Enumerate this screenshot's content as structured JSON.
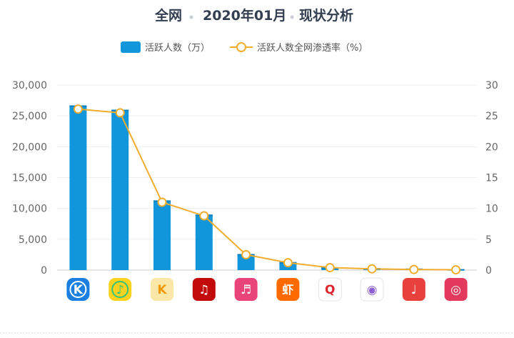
{
  "header": {
    "part1": "全网",
    "part2": "2020年01月",
    "part3": "现状分析"
  },
  "chart_data": {
    "type": "bar",
    "title": "",
    "categories": [
      "酷狗音乐",
      "QQ音乐",
      "酷我音乐",
      "网易云音乐",
      "咪咕音乐",
      "虾米音乐",
      "全民K歌",
      "懒人听书",
      "唱吧",
      "音悦台"
    ],
    "category_icons": [
      {
        "name": "kugou-icon",
        "bg": "#1a7fe0",
        "glyph": "K",
        "fg": "#ffffff",
        "shape": "circle"
      },
      {
        "name": "qqmusic-icon",
        "bg": "#ffd21f",
        "glyph": "♪",
        "fg": "#31c27c",
        "shape": "circle"
      },
      {
        "name": "kuwo-icon",
        "bg": "#fbe7a8",
        "glyph": "K",
        "fg": "#f29a00",
        "shape": "rounded"
      },
      {
        "name": "netease-music-icon",
        "bg": "#c20c0c",
        "glyph": "♫",
        "fg": "#ffffff",
        "shape": "rounded"
      },
      {
        "name": "migu-music-icon",
        "bg": "#e8447a",
        "glyph": "♬",
        "fg": "#ffffff",
        "shape": "rounded"
      },
      {
        "name": "xiami-music-icon",
        "bg": "#ff6a00",
        "glyph": "虾",
        "fg": "#ffffff",
        "shape": "rounded"
      },
      {
        "name": "quanmin-ksong-icon",
        "bg": "#ffffff",
        "glyph": "Q",
        "fg": "#e0242d",
        "shape": "rounded"
      },
      {
        "name": "lanren-tingshu-icon",
        "bg": "#ffffff",
        "glyph": "◉",
        "fg": "#8e5fd6",
        "shape": "rounded"
      },
      {
        "name": "changba-icon",
        "bg": "#e8403c",
        "glyph": "♩",
        "fg": "#ffffff",
        "shape": "rounded"
      },
      {
        "name": "yinyuetai-icon",
        "bg": "#e2395d",
        "glyph": "◎",
        "fg": "#ffffff",
        "shape": "rounded"
      }
    ],
    "series": [
      {
        "name": "活跃人数（万）",
        "type": "bar",
        "axis": "left",
        "color": "#1296db",
        "values": [
          26700,
          26000,
          11300,
          9000,
          2600,
          1300,
          450,
          320,
          250,
          150
        ]
      },
      {
        "name": "活跃人数全网渗透率（%）",
        "type": "line",
        "axis": "right",
        "color": "#f0ad2e",
        "values": [
          26.1,
          25.5,
          11.0,
          8.8,
          2.5,
          1.2,
          0.4,
          0.2,
          0.1,
          0.05
        ]
      }
    ],
    "y_left": {
      "min": 0,
      "max": 30000,
      "ticks": [
        "30,000",
        "25,000",
        "20,000",
        "15,000",
        "10,000",
        "5,000",
        "0"
      ]
    },
    "y_right": {
      "min": 0,
      "max": 30,
      "ticks": [
        "30",
        "25",
        "20",
        "15",
        "10",
        "5",
        "0"
      ]
    },
    "grid": true,
    "legend_position": "top-center"
  }
}
